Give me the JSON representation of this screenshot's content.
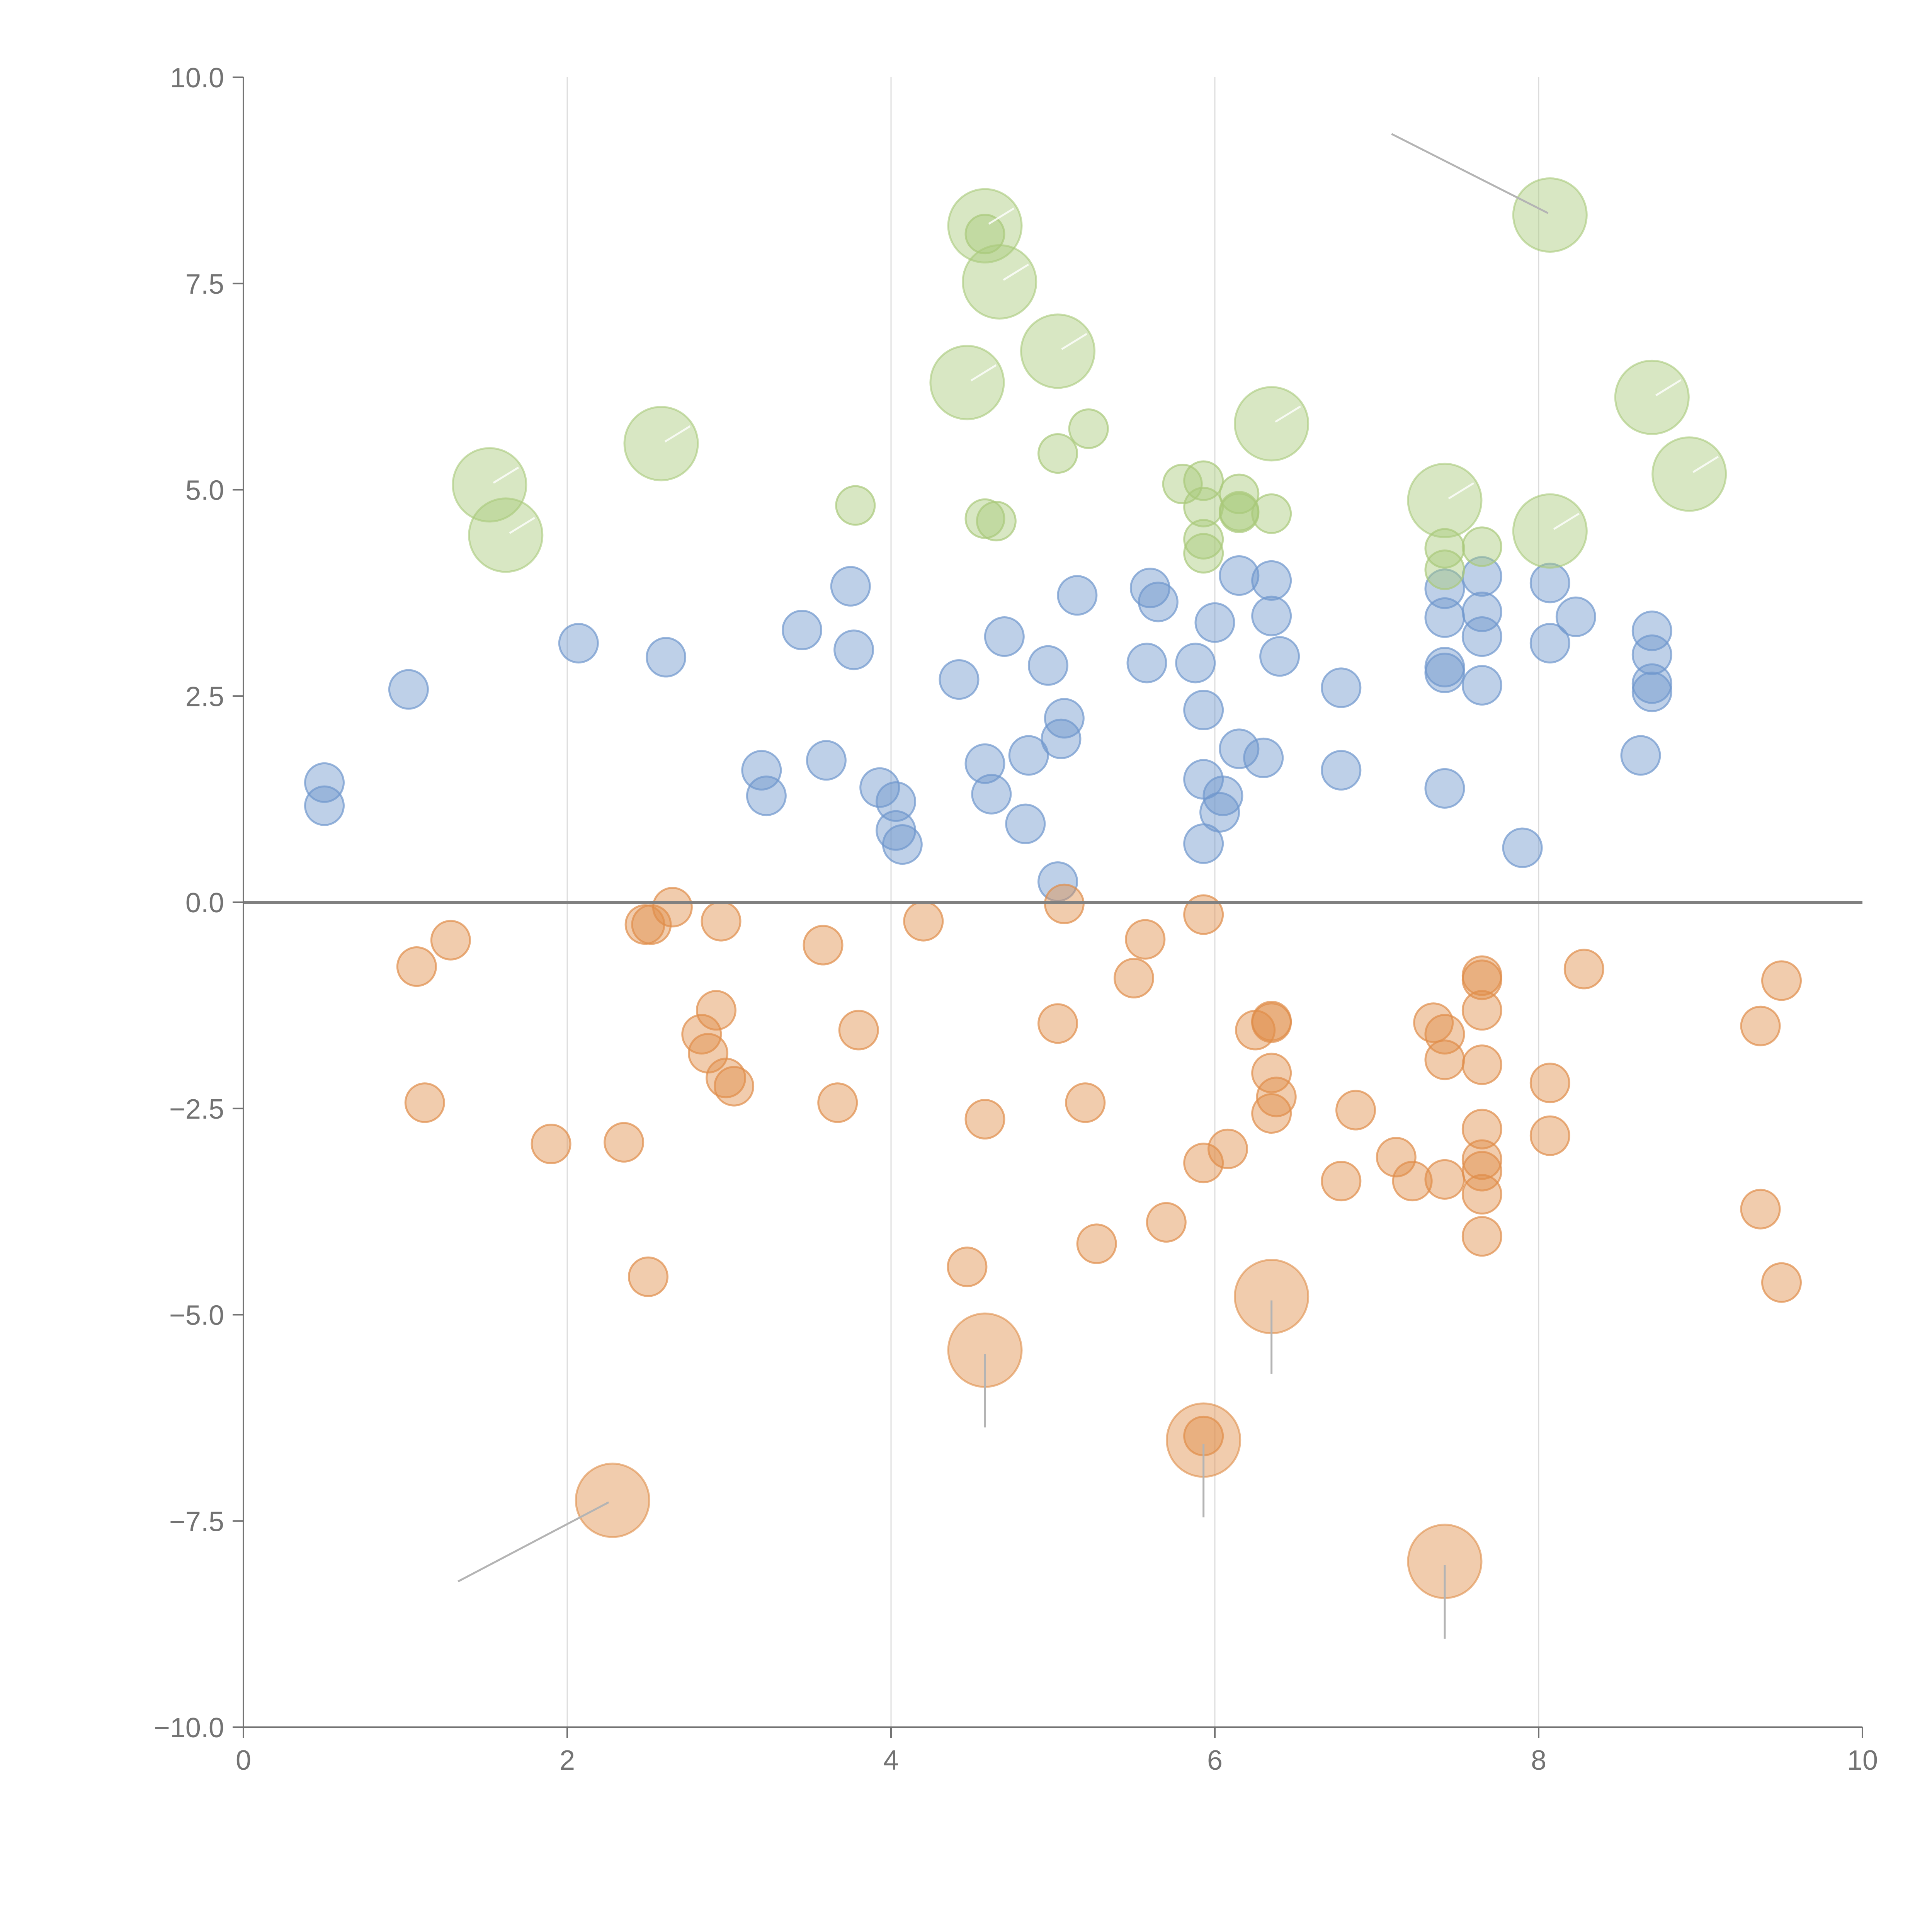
{
  "chart_data": {
    "type": "scatter",
    "title": "",
    "xlabel": "",
    "ylabel": "",
    "xlim": [
      0,
      10
    ],
    "ylim": [
      -10,
      10
    ],
    "x_ticks": [
      "0",
      "2",
      "4",
      "6",
      "8",
      "10"
    ],
    "y_ticks": [
      "10.0",
      "7.5",
      "5.0",
      "2.5",
      "0.0",
      "−2.5",
      "−5.0",
      "−7.5",
      "−10.0"
    ],
    "grid": "vertical lines at x ticks",
    "reference_line_y": 0,
    "colors": {
      "blue": "#6f97cd",
      "orange": "#e08d4a",
      "green": "#a9c97a"
    },
    "series": [
      {
        "color_key": "blue",
        "points": [
          [
            0.5,
            1.45
          ],
          [
            0.5,
            1.17
          ],
          [
            1.02,
            2.58
          ],
          [
            2.07,
            3.14
          ],
          [
            2.61,
            2.97
          ],
          [
            3.2,
            1.6
          ],
          [
            3.23,
            1.29
          ],
          [
            3.45,
            3.3
          ],
          [
            3.6,
            1.72
          ],
          [
            3.75,
            3.83
          ],
          [
            3.77,
            3.06
          ],
          [
            3.93,
            1.39
          ],
          [
            4.03,
            1.22
          ],
          [
            4.03,
            0.87
          ],
          [
            4.07,
            0.7
          ],
          [
            4.42,
            2.7
          ],
          [
            4.58,
            1.68
          ],
          [
            4.62,
            1.31
          ],
          [
            4.7,
            3.22
          ],
          [
            4.83,
            0.95
          ],
          [
            4.85,
            1.78
          ],
          [
            4.97,
            2.87
          ],
          [
            5.03,
            0.25
          ],
          [
            5.05,
            1.98
          ],
          [
            5.07,
            2.23
          ],
          [
            5.15,
            3.72
          ],
          [
            5.58,
            2.9
          ],
          [
            5.6,
            3.81
          ],
          [
            5.65,
            3.64
          ],
          [
            5.88,
            2.9
          ],
          [
            5.93,
            2.33
          ],
          [
            5.93,
            1.49
          ],
          [
            5.93,
            0.71
          ],
          [
            6.0,
            3.39
          ],
          [
            6.03,
            1.09
          ],
          [
            6.05,
            1.29
          ],
          [
            6.15,
            3.96
          ],
          [
            6.15,
            1.86
          ],
          [
            6.3,
            1.75
          ],
          [
            6.35,
            3.9
          ],
          [
            6.35,
            3.47
          ],
          [
            6.4,
            2.98
          ],
          [
            6.78,
            2.6
          ],
          [
            6.78,
            1.6
          ],
          [
            7.42,
            3.8
          ],
          [
            7.42,
            3.45
          ],
          [
            7.42,
            2.85
          ],
          [
            7.42,
            2.78
          ],
          [
            7.42,
            1.38
          ],
          [
            7.65,
            3.95
          ],
          [
            7.65,
            3.52
          ],
          [
            7.65,
            3.22
          ],
          [
            7.65,
            2.63
          ],
          [
            7.9,
            0.66
          ],
          [
            8.07,
            3.87
          ],
          [
            8.07,
            3.14
          ],
          [
            8.23,
            3.46
          ],
          [
            8.63,
            1.78
          ],
          [
            8.7,
            3.29
          ],
          [
            8.7,
            3.0
          ],
          [
            8.7,
            2.65
          ],
          [
            8.7,
            2.55
          ]
        ],
        "sizes": [
          1
        ]
      },
      {
        "color_key": "orange",
        "points": [
          [
            1.07,
            -0.78
          ],
          [
            1.12,
            -2.43
          ],
          [
            1.28,
            -0.46
          ],
          [
            1.9,
            -2.93
          ],
          [
            2.35,
            -2.91
          ],
          [
            2.48,
            -0.27
          ],
          [
            2.5,
            -4.54
          ],
          [
            2.52,
            -0.27
          ],
          [
            2.65,
            -0.06
          ],
          [
            2.83,
            -1.6
          ],
          [
            2.87,
            -1.83
          ],
          [
            2.92,
            -1.31
          ],
          [
            2.95,
            -0.23
          ],
          [
            2.98,
            -2.13
          ],
          [
            3.03,
            -2.23
          ],
          [
            3.58,
            -0.52
          ],
          [
            3.67,
            -2.43
          ],
          [
            3.8,
            -1.55
          ],
          [
            4.2,
            -0.23
          ],
          [
            4.47,
            -4.42
          ],
          [
            4.58,
            -2.63
          ],
          [
            5.03,
            -1.47
          ],
          [
            5.07,
            -0.02
          ],
          [
            5.2,
            -2.43
          ],
          [
            5.27,
            -4.14
          ],
          [
            5.5,
            -0.92
          ],
          [
            5.57,
            -0.45
          ],
          [
            5.7,
            -3.88
          ],
          [
            5.93,
            -0.15
          ],
          [
            5.93,
            -3.16
          ],
          [
            6.08,
            -2.99
          ],
          [
            6.25,
            -1.55
          ],
          [
            6.35,
            -1.44
          ],
          [
            6.35,
            -1.46
          ],
          [
            6.35,
            -2.07
          ],
          [
            6.35,
            -2.56
          ],
          [
            6.38,
            -2.36
          ],
          [
            6.78,
            -3.38
          ],
          [
            6.87,
            -2.52
          ],
          [
            7.12,
            -3.09
          ],
          [
            7.22,
            -3.38
          ],
          [
            7.35,
            -1.46
          ],
          [
            7.42,
            -1.6
          ],
          [
            7.42,
            -1.91
          ],
          [
            7.42,
            -3.36
          ],
          [
            7.65,
            -0.89
          ],
          [
            7.65,
            -0.94
          ],
          [
            7.65,
            -1.31
          ],
          [
            7.65,
            -1.97
          ],
          [
            7.65,
            -2.75
          ],
          [
            7.65,
            -3.12
          ],
          [
            7.65,
            -3.26
          ],
          [
            7.65,
            -3.54
          ],
          [
            7.65,
            -4.05
          ],
          [
            8.07,
            -2.19
          ],
          [
            8.07,
            -2.83
          ],
          [
            8.28,
            -0.81
          ],
          [
            9.37,
            -1.5
          ],
          [
            9.37,
            -3.72
          ],
          [
            9.5,
            -0.95
          ],
          [
            9.5,
            -4.61
          ],
          [
            5.93,
            -6.47
          ]
        ],
        "large_points": [
          [
            2.28,
            -7.25
          ],
          [
            4.58,
            -5.43
          ],
          [
            5.93,
            -6.52
          ],
          [
            6.35,
            -4.78
          ],
          [
            7.42,
            -7.99
          ]
        ],
        "sizes": [
          1
        ]
      },
      {
        "color_key": "green",
        "points": [
          [
            3.78,
            4.81
          ],
          [
            4.58,
            8.1
          ],
          [
            4.58,
            4.65
          ],
          [
            4.65,
            4.62
          ],
          [
            5.03,
            5.44
          ],
          [
            5.22,
            5.74
          ],
          [
            5.8,
            5.07
          ],
          [
            5.93,
            5.11
          ],
          [
            5.93,
            4.79
          ],
          [
            5.93,
            4.4
          ],
          [
            5.93,
            4.23
          ],
          [
            6.15,
            4.95
          ],
          [
            6.15,
            4.74
          ],
          [
            6.15,
            4.72
          ],
          [
            6.35,
            4.71
          ],
          [
            7.42,
            4.29
          ],
          [
            7.42,
            4.03
          ],
          [
            7.65,
            4.31
          ]
        ],
        "large_points": [
          [
            1.52,
            5.06
          ],
          [
            1.62,
            4.45
          ],
          [
            2.58,
            5.56
          ],
          [
            4.47,
            6.3
          ],
          [
            4.58,
            8.2
          ],
          [
            4.67,
            7.52
          ],
          [
            5.03,
            6.68
          ],
          [
            6.35,
            5.8
          ],
          [
            7.42,
            4.87
          ],
          [
            8.07,
            8.33
          ],
          [
            8.07,
            4.5
          ],
          [
            8.7,
            6.12
          ],
          [
            8.93,
            5.19
          ]
        ],
        "sizes": [
          1
        ]
      }
    ]
  }
}
